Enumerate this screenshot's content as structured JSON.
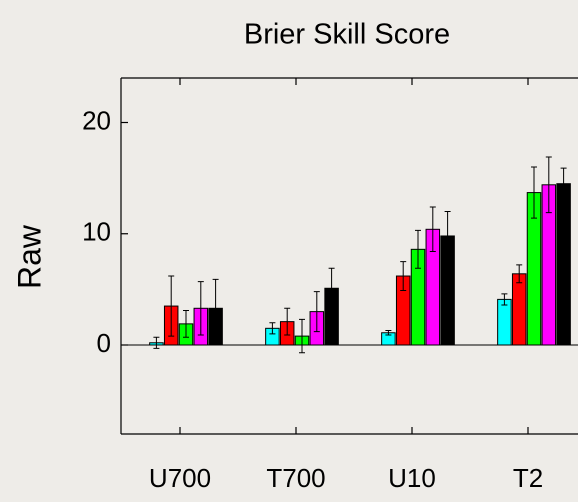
{
  "chart_data": {
    "type": "bar",
    "title": "Brier Skill Score",
    "y_label": "Raw",
    "categories": [
      "U700",
      "T700",
      "U10",
      "T2"
    ],
    "series": [
      {
        "color": "#00ffff",
        "values": [
          0.2,
          1.5,
          1.1,
          4.1
        ],
        "errors": [
          0.5,
          0.5,
          0.2,
          0.5
        ]
      },
      {
        "color": "#ff0000",
        "values": [
          3.5,
          2.1,
          6.2,
          6.4
        ],
        "errors": [
          2.7,
          1.2,
          1.3,
          0.8
        ]
      },
      {
        "color": "#00ff00",
        "values": [
          1.9,
          0.8,
          8.6,
          13.7
        ],
        "errors": [
          1.2,
          1.5,
          1.7,
          2.3
        ]
      },
      {
        "color": "#ff00ff",
        "values": [
          3.3,
          3.0,
          10.4,
          14.4
        ],
        "errors": [
          2.4,
          1.8,
          2.0,
          2.5
        ]
      },
      {
        "color": "#000000",
        "values": [
          3.3,
          5.1,
          9.8,
          14.5
        ],
        "errors": [
          2.6,
          1.8,
          2.2,
          1.4
        ]
      }
    ],
    "ylim": [
      -8,
      24
    ],
    "yticks": [
      0,
      10,
      20
    ],
    "grid": false
  }
}
